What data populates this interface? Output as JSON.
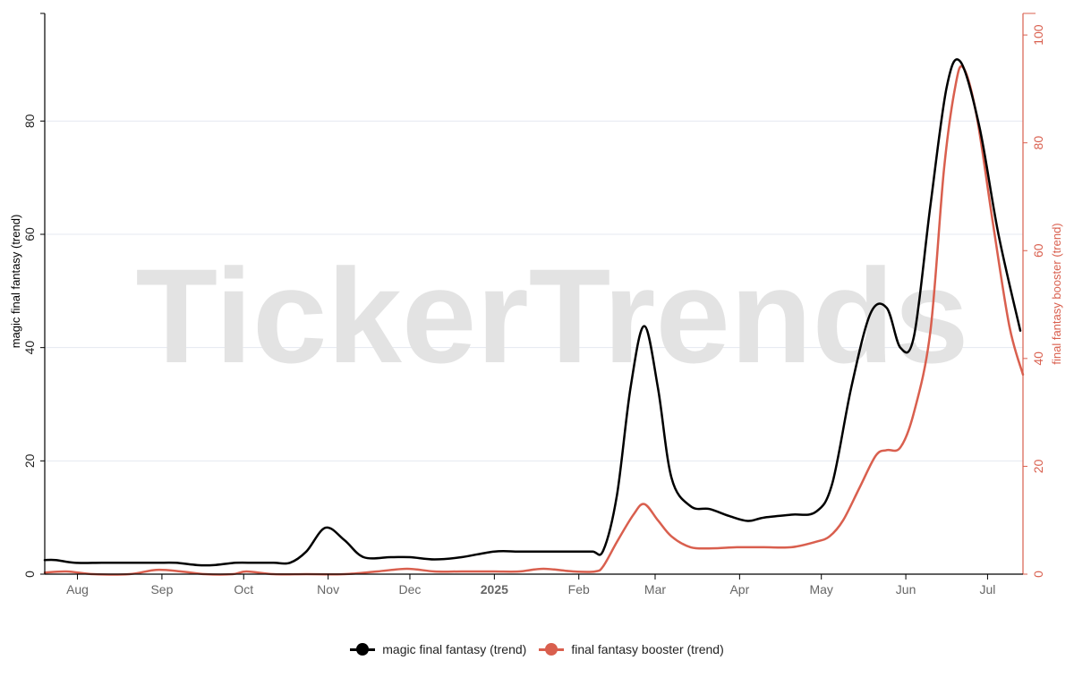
{
  "colors": {
    "series1": "#000000",
    "series2": "#d95f4e",
    "grid": "#e4e8f1",
    "watermark": "#e3e3e3",
    "axis_text_left": "#222222",
    "axis_text_bottom": "#666666"
  },
  "watermark": "TickerTrends",
  "chart_data": {
    "type": "line",
    "x_axis": {
      "type": "date",
      "range": [
        "2024-07-20",
        "2025-07-14"
      ],
      "ticks": [
        {
          "date": "2024-08-01",
          "label": "Aug",
          "bold": false
        },
        {
          "date": "2024-09-01",
          "label": "Sep",
          "bold": false
        },
        {
          "date": "2024-10-01",
          "label": "Oct",
          "bold": false
        },
        {
          "date": "2024-11-01",
          "label": "Nov",
          "bold": false
        },
        {
          "date": "2024-12-01",
          "label": "Dec",
          "bold": false
        },
        {
          "date": "2025-01-01",
          "label": "2025",
          "bold": true
        },
        {
          "date": "2025-02-01",
          "label": "Feb",
          "bold": false
        },
        {
          "date": "2025-03-01",
          "label": "Mar",
          "bold": false
        },
        {
          "date": "2025-04-01",
          "label": "Apr",
          "bold": false
        },
        {
          "date": "2025-05-01",
          "label": "May",
          "bold": false
        },
        {
          "date": "2025-06-01",
          "label": "Jun",
          "bold": false
        },
        {
          "date": "2025-07-01",
          "label": "Jul",
          "bold": false
        }
      ]
    },
    "y_left": {
      "label": "magic final fantasy  (trend)",
      "range": [
        0,
        99
      ],
      "ticks": [
        0,
        20,
        40,
        60,
        80
      ],
      "grid": true
    },
    "y_right": {
      "label": "final fantasy booster  (trend)",
      "range": [
        0,
        104
      ],
      "ticks": [
        0,
        20,
        40,
        60,
        80,
        100
      ],
      "grid": false
    },
    "legend_position": "bottom-center",
    "series": [
      {
        "name": "magic final fantasy  (trend)",
        "axis": "left",
        "color": "#000000",
        "points": [
          [
            "2024-07-20",
            2.5
          ],
          [
            "2024-07-24",
            2.5
          ],
          [
            "2024-07-31",
            2
          ],
          [
            "2024-08-10",
            2
          ],
          [
            "2024-08-20",
            2
          ],
          [
            "2024-08-30",
            2
          ],
          [
            "2024-09-06",
            2
          ],
          [
            "2024-09-14",
            1.6
          ],
          [
            "2024-09-20",
            1.6
          ],
          [
            "2024-09-28",
            2
          ],
          [
            "2024-10-05",
            2
          ],
          [
            "2024-10-12",
            2
          ],
          [
            "2024-10-18",
            2
          ],
          [
            "2024-10-24",
            4
          ],
          [
            "2024-10-31",
            8.2
          ],
          [
            "2024-11-07",
            6
          ],
          [
            "2024-11-14",
            3
          ],
          [
            "2024-11-24",
            3
          ],
          [
            "2024-12-01",
            3
          ],
          [
            "2024-12-10",
            2.6
          ],
          [
            "2024-12-20",
            3
          ],
          [
            "2025-01-01",
            4
          ],
          [
            "2025-01-10",
            4
          ],
          [
            "2025-01-20",
            4
          ],
          [
            "2025-01-30",
            4
          ],
          [
            "2025-02-06",
            4
          ],
          [
            "2025-02-10",
            4.2
          ],
          [
            "2025-02-15",
            14
          ],
          [
            "2025-02-20",
            33
          ],
          [
            "2025-02-25",
            43.8
          ],
          [
            "2025-03-02",
            33
          ],
          [
            "2025-03-07",
            17
          ],
          [
            "2025-03-14",
            12
          ],
          [
            "2025-03-21",
            11.5
          ],
          [
            "2025-03-28",
            10.3
          ],
          [
            "2025-04-04",
            9.4
          ],
          [
            "2025-04-10",
            10
          ],
          [
            "2025-04-20",
            10.5
          ],
          [
            "2025-04-29",
            11
          ],
          [
            "2025-05-05",
            16
          ],
          [
            "2025-05-12",
            33
          ],
          [
            "2025-05-19",
            46
          ],
          [
            "2025-05-25",
            47
          ],
          [
            "2025-05-30",
            40
          ],
          [
            "2025-06-04",
            42
          ],
          [
            "2025-06-10",
            65
          ],
          [
            "2025-06-16",
            86
          ],
          [
            "2025-06-21",
            90.5
          ],
          [
            "2025-06-28",
            79
          ],
          [
            "2025-07-05",
            60
          ],
          [
            "2025-07-13",
            43
          ]
        ]
      },
      {
        "name": "final fantasy booster  (trend)",
        "axis": "right",
        "color": "#d95f4e",
        "points": [
          [
            "2024-07-20",
            0.3
          ],
          [
            "2024-07-28",
            0.5
          ],
          [
            "2024-08-07",
            0
          ],
          [
            "2024-08-20",
            0
          ],
          [
            "2024-08-30",
            0.8
          ],
          [
            "2024-09-08",
            0.5
          ],
          [
            "2024-09-17",
            0
          ],
          [
            "2024-09-27",
            0
          ],
          [
            "2024-10-02",
            0.5
          ],
          [
            "2024-10-12",
            0
          ],
          [
            "2024-10-24",
            0
          ],
          [
            "2024-11-07",
            0
          ],
          [
            "2024-11-19",
            0.5
          ],
          [
            "2024-11-30",
            1
          ],
          [
            "2024-12-10",
            0.5
          ],
          [
            "2024-12-20",
            0.5
          ],
          [
            "2025-01-01",
            0.5
          ],
          [
            "2025-01-10",
            0.5
          ],
          [
            "2025-01-19",
            1
          ],
          [
            "2025-01-30",
            0.5
          ],
          [
            "2025-02-07",
            0.5
          ],
          [
            "2025-02-10",
            1.5
          ],
          [
            "2025-02-15",
            6
          ],
          [
            "2025-02-21",
            11
          ],
          [
            "2025-02-25",
            13
          ],
          [
            "2025-03-02",
            10
          ],
          [
            "2025-03-07",
            7
          ],
          [
            "2025-03-14",
            5
          ],
          [
            "2025-03-22",
            4.8
          ],
          [
            "2025-03-31",
            5
          ],
          [
            "2025-04-10",
            5
          ],
          [
            "2025-04-20",
            5
          ],
          [
            "2025-04-29",
            6
          ],
          [
            "2025-05-04",
            7
          ],
          [
            "2025-05-09",
            10
          ],
          [
            "2025-05-15",
            16
          ],
          [
            "2025-05-21",
            22
          ],
          [
            "2025-05-25",
            23
          ],
          [
            "2025-05-30",
            23.5
          ],
          [
            "2025-06-04",
            30
          ],
          [
            "2025-06-10",
            45
          ],
          [
            "2025-06-15",
            75
          ],
          [
            "2025-06-19",
            90
          ],
          [
            "2025-06-22",
            94
          ],
          [
            "2025-06-27",
            85
          ],
          [
            "2025-07-03",
            65
          ],
          [
            "2025-07-09",
            46
          ],
          [
            "2025-07-14",
            37
          ]
        ]
      }
    ]
  }
}
